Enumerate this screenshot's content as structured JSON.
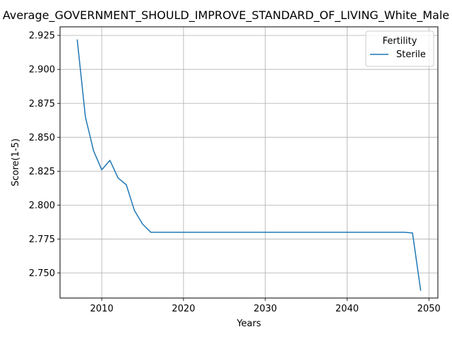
{
  "chart_data": {
    "type": "line",
    "title": "Average_GOVERNMENT_SHOULD_IMPROVE_STANDARD_OF_LIVING_White_Male",
    "xlabel": "Years",
    "ylabel": "Score(1-5)",
    "xlim": [
      2004.9,
      2051.1
    ],
    "ylim": [
      2.7316,
      2.9313
    ],
    "xticks": [
      2010,
      2020,
      2030,
      2040,
      2050
    ],
    "yticks": [
      2.75,
      2.775,
      2.8,
      2.825,
      2.85,
      2.875,
      2.9,
      2.925
    ],
    "xtick_labels": [
      "2010",
      "2020",
      "2030",
      "2040",
      "2050"
    ],
    "ytick_labels": [
      "2.750",
      "2.775",
      "2.800",
      "2.825",
      "2.850",
      "2.875",
      "2.900",
      "2.925"
    ],
    "grid": true,
    "legend": {
      "title": "Fertility",
      "placement": "top-right"
    },
    "colors": {
      "line": "#1f77b4",
      "grid": "#b0b0b0"
    },
    "series": [
      {
        "name": "Sterile",
        "x": [
          2007,
          2008,
          2009,
          2010,
          2011,
          2012,
          2013,
          2014,
          2015,
          2016,
          2017,
          2018,
          2019,
          2020,
          2021,
          2022,
          2023,
          2024,
          2025,
          2026,
          2027,
          2028,
          2029,
          2030,
          2031,
          2032,
          2033,
          2034,
          2035,
          2036,
          2037,
          2038,
          2039,
          2040,
          2041,
          2042,
          2043,
          2044,
          2045,
          2046,
          2047,
          2048,
          2049
        ],
        "values": [
          2.922,
          2.865,
          2.84,
          2.826,
          2.833,
          2.82,
          2.815,
          2.796,
          2.786,
          2.78,
          2.78,
          2.78,
          2.78,
          2.78,
          2.78,
          2.78,
          2.78,
          2.78,
          2.78,
          2.78,
          2.78,
          2.78,
          2.78,
          2.78,
          2.78,
          2.78,
          2.78,
          2.78,
          2.78,
          2.78,
          2.78,
          2.78,
          2.78,
          2.78,
          2.78,
          2.78,
          2.78,
          2.78,
          2.78,
          2.78,
          2.78,
          2.7795,
          2.737
        ]
      }
    ]
  }
}
